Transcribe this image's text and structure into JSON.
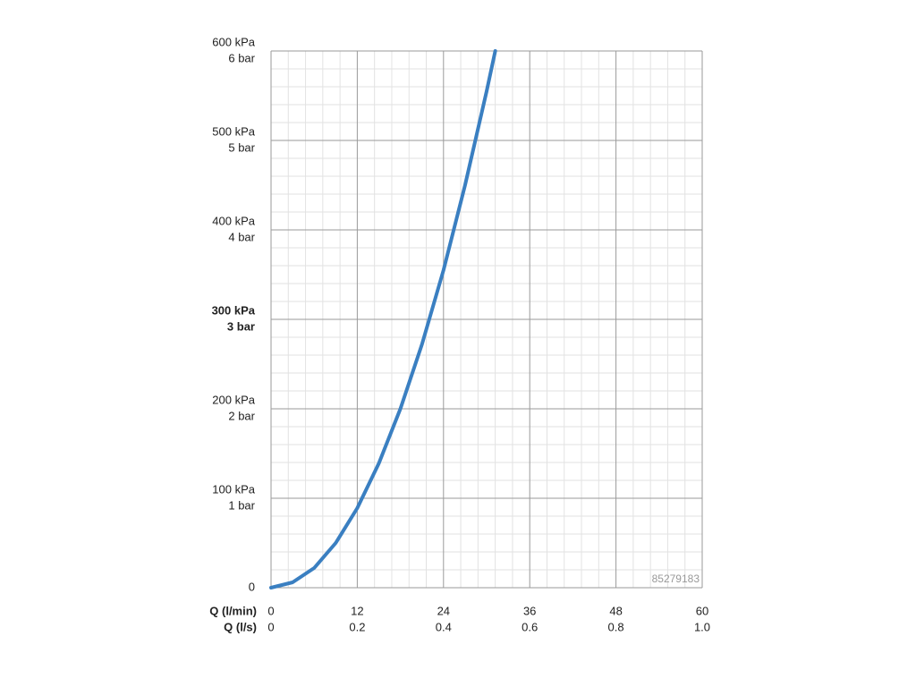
{
  "chart_data": {
    "type": "line",
    "xlabel": "Q (l/min)",
    "x2label": "Q (l/s)",
    "x": [
      0,
      3,
      6,
      9,
      12,
      15,
      18,
      21,
      24,
      27,
      30,
      31.2
    ],
    "series": [
      {
        "color": "#3a7fc1",
        "values": [
          0,
          6,
          22,
          50,
          89,
          139,
          200,
          272,
          355,
          450,
          555,
          600
        ]
      }
    ],
    "xlim": [
      0,
      60
    ],
    "ylim": [
      0,
      600
    ],
    "xticks": [
      0,
      12,
      24,
      36,
      48,
      60
    ],
    "x2ticks": [
      0,
      {
        "value": 12,
        "label": "0.2"
      },
      {
        "value": 24,
        "label": "0.4"
      },
      {
        "value": 36,
        "label": "0.6"
      },
      {
        "value": 48,
        "label": "0.8"
      },
      {
        "value": 60,
        "label": "1.0"
      }
    ],
    "yticks": [
      0,
      {
        "value": 100,
        "label": "100 kPa"
      },
      {
        "value": 200,
        "label": "200 kPa"
      },
      {
        "value": 300,
        "label": "300 kPa"
      },
      {
        "value": 400,
        "label": "400 kPa"
      },
      {
        "value": 500,
        "label": "500 kPa"
      },
      {
        "value": 600,
        "label": "600 kPa"
      }
    ],
    "ybarticks": [
      {
        "value": 100,
        "label": "1 bar"
      },
      {
        "value": 200,
        "label": "2 bar"
      },
      {
        "value": 300,
        "label": "3 bar"
      },
      {
        "value": 400,
        "label": "4 bar"
      },
      {
        "value": 500,
        "label": "5 bar"
      },
      {
        "value": 600,
        "label": "6 bar"
      }
    ],
    "bold_ytick": 300,
    "minor_divisions": 5,
    "grid": true,
    "annotation": "85279183"
  }
}
